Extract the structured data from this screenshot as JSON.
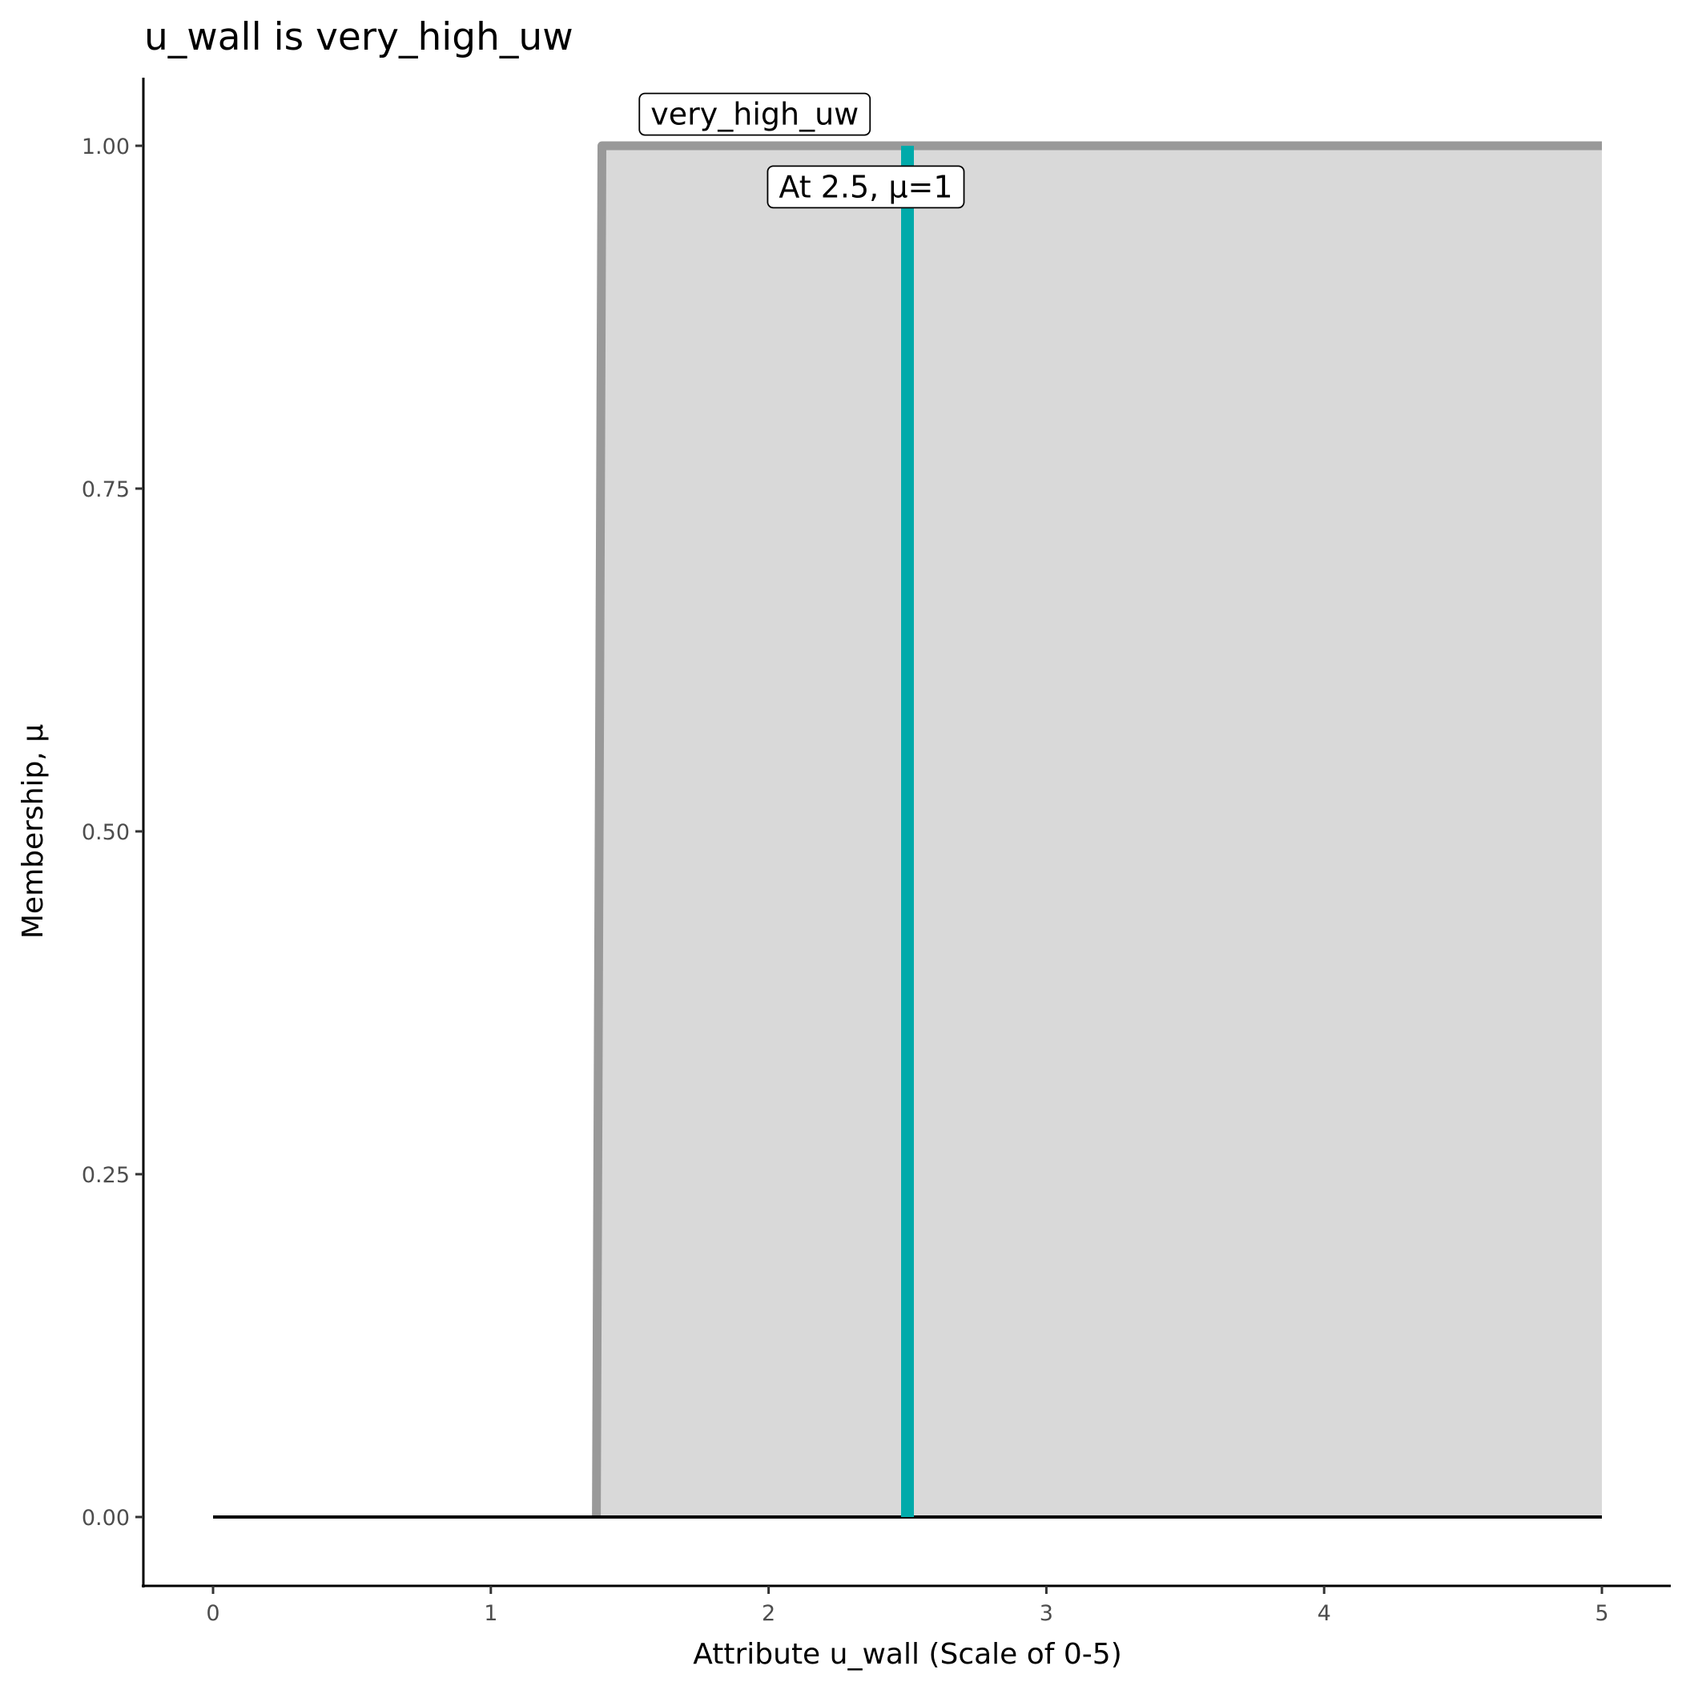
{
  "chart_data": {
    "type": "area",
    "title": "u_wall is very_high_uw",
    "xlabel": "Attribute u_wall (Scale of 0-5)",
    "ylabel": "Membership, μ",
    "xlim": [
      -0.25,
      5.25
    ],
    "ylim": [
      -0.05,
      1.05
    ],
    "x_ticks": [
      "0",
      "1",
      "2",
      "3",
      "4",
      "5"
    ],
    "y_ticks": [
      "0.00",
      "0.25",
      "0.50",
      "0.75",
      "1.00"
    ],
    "grid": false,
    "membership": {
      "name": "very_high_uw",
      "points": [
        [
          1.38,
          0
        ],
        [
          1.4,
          1
        ],
        [
          5,
          1
        ]
      ],
      "line_color": "#999999",
      "fill_color": "#d9d9d9"
    },
    "baseline": {
      "x": [
        0,
        5
      ],
      "y": 0,
      "color": "#000000"
    },
    "marker": {
      "x": 2.5,
      "y": 1,
      "color": "#00aaaa"
    },
    "annotations": [
      {
        "text": "very_high_uw",
        "x": 1.95,
        "y": 1.023
      },
      {
        "text": "At 2.5, μ=1",
        "x": 2.35,
        "y": 0.97
      }
    ]
  }
}
